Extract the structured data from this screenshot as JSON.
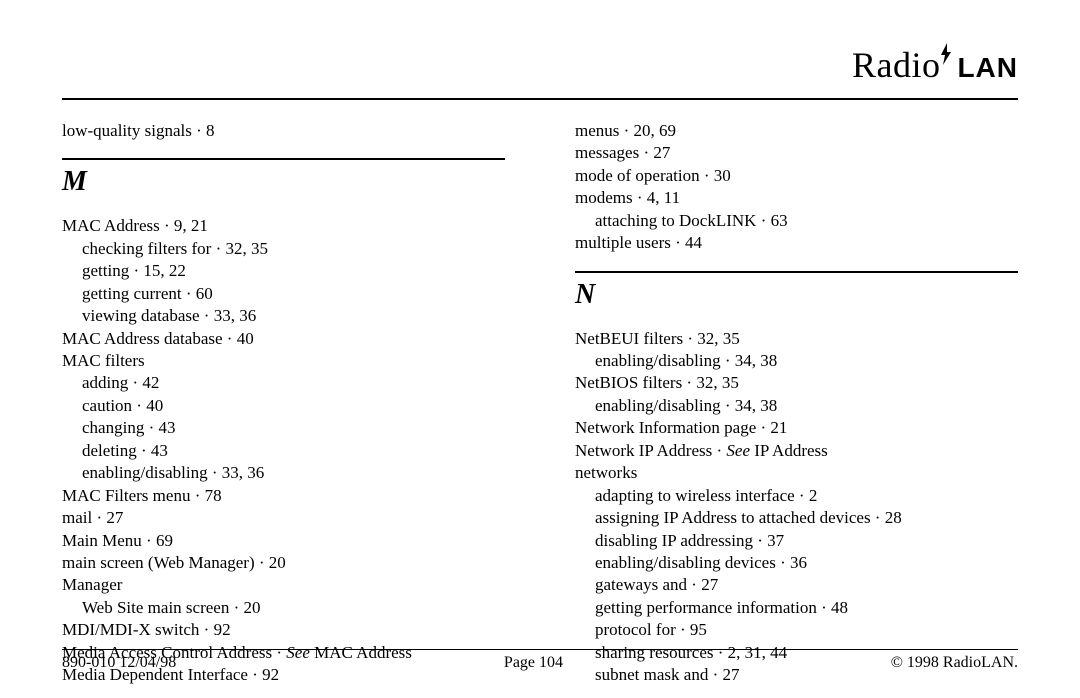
{
  "brand": {
    "part1": "Radio",
    "part2": "LAN"
  },
  "footer": {
    "left": "890-010  12/04/98",
    "center": "Page 104",
    "right": "© 1998 RadioLAN."
  },
  "sections": {
    "M": "M",
    "N": "N"
  },
  "col1": {
    "pre": [
      "low-quality signals · 8"
    ],
    "m": [
      {
        "t": "MAC Address · 9, 21",
        "lvl": 0
      },
      {
        "t": "checking filters for · 32, 35",
        "lvl": 1
      },
      {
        "t": "getting · 15, 22",
        "lvl": 1
      },
      {
        "t": "getting current · 60",
        "lvl": 1
      },
      {
        "t": "viewing database · 33, 36",
        "lvl": 1
      },
      {
        "t": "MAC Address database · 40",
        "lvl": 0
      },
      {
        "t": "MAC filters",
        "lvl": 0
      },
      {
        "t": "adding · 42",
        "lvl": 1
      },
      {
        "t": "caution · 40",
        "lvl": 1
      },
      {
        "t": "changing · 43",
        "lvl": 1
      },
      {
        "t": "deleting · 43",
        "lvl": 1
      },
      {
        "t": "enabling/disabling · 33, 36",
        "lvl": 1
      },
      {
        "t": "MAC Filters menu · 78",
        "lvl": 0
      },
      {
        "t": "mail · 27",
        "lvl": 0
      },
      {
        "t": "Main Menu · 69",
        "lvl": 0
      },
      {
        "t": "main screen (Web Manager) · 20",
        "lvl": 0
      },
      {
        "t": "Manager",
        "lvl": 0
      },
      {
        "t": "Web Site main screen · 20",
        "lvl": 1
      },
      {
        "t": "MDI/MDI-X switch · 92",
        "lvl": 0
      },
      {
        "pre": "Media Access Control Address · ",
        "see": "See",
        "post": " MAC Address",
        "lvl": 0
      },
      {
        "t": "Media Dependent Interface · 92",
        "lvl": 0
      }
    ]
  },
  "col2": {
    "m_cont": [
      {
        "t": "menus · 20, 69",
        "lvl": 0
      },
      {
        "t": "messages · 27",
        "lvl": 0
      },
      {
        "t": "mode of operation · 30",
        "lvl": 0
      },
      {
        "t": "modems · 4, 11",
        "lvl": 0
      },
      {
        "t": "attaching to DockLINK · 63",
        "lvl": 1
      },
      {
        "t": "multiple users · 44",
        "lvl": 0
      }
    ],
    "n": [
      {
        "t": "NetBEUI filters · 32, 35",
        "lvl": 0
      },
      {
        "t": "enabling/disabling · 34, 38",
        "lvl": 1
      },
      {
        "t": "NetBIOS filters · 32, 35",
        "lvl": 0
      },
      {
        "t": "enabling/disabling · 34, 38",
        "lvl": 1
      },
      {
        "t": "Network Information page · 21",
        "lvl": 0
      },
      {
        "pre": "Network IP Address · ",
        "see": "See",
        "post": " IP Address",
        "lvl": 0
      },
      {
        "t": "networks",
        "lvl": 0
      },
      {
        "t": "adapting to wireless interface · 2",
        "lvl": 1
      },
      {
        "t": "assigning IP Address to attached devices · 28",
        "lvl": 1
      },
      {
        "t": "disabling IP addressing · 37",
        "lvl": 1
      },
      {
        "t": "enabling/disabling devices · 36",
        "lvl": 1
      },
      {
        "t": "gateways and · 27",
        "lvl": 1
      },
      {
        "t": "getting performance information · 48",
        "lvl": 1
      },
      {
        "t": "protocol for · 95",
        "lvl": 1
      },
      {
        "t": "sharing resources · 2, 31, 44",
        "lvl": 1
      },
      {
        "t": "subnet mask and · 27",
        "lvl": 1
      }
    ]
  }
}
